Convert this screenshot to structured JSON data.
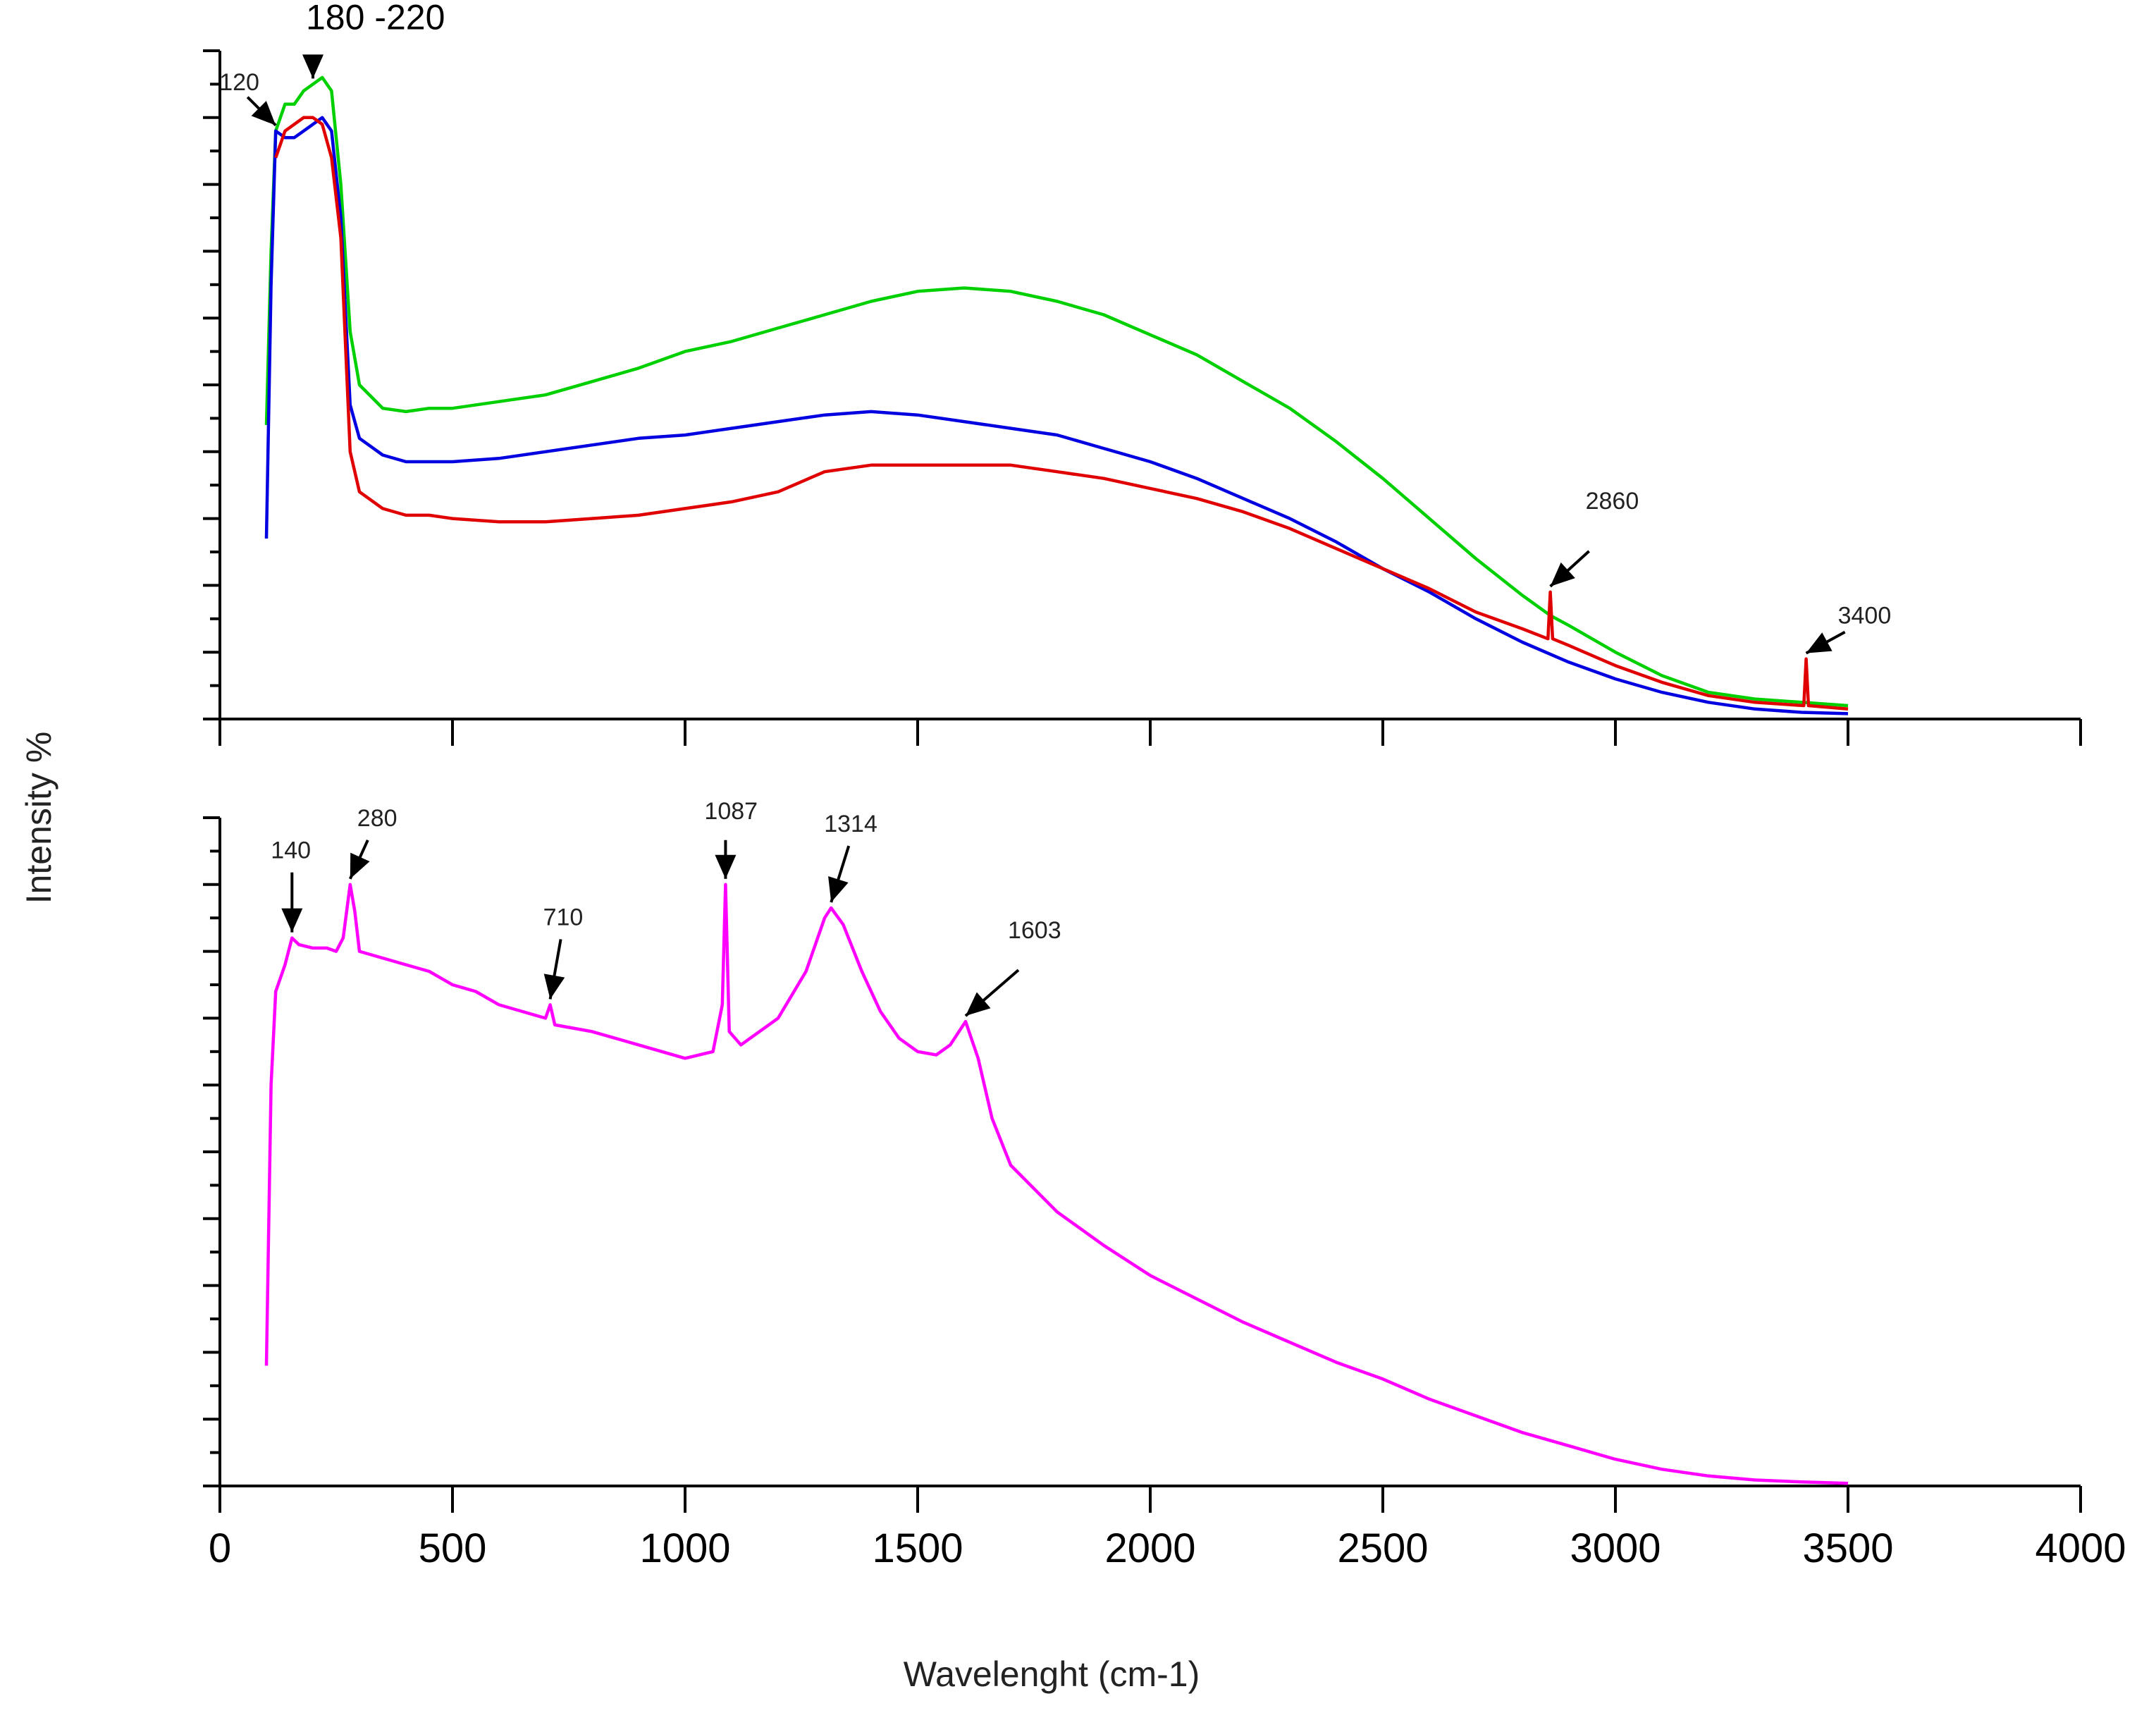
{
  "chart_data": [
    {
      "type": "line",
      "panel": "top",
      "title": "",
      "xlim": [
        0,
        4000
      ],
      "ylim": [
        0,
        100
      ],
      "y_tick_count": 20,
      "x_tick_labels_shown": false,
      "series": [
        {
          "name": "green",
          "color": "#00d000",
          "points": [
            [
              100,
              44
            ],
            [
              110,
              70
            ],
            [
              120,
              88
            ],
            [
              140,
              92
            ],
            [
              160,
              92
            ],
            [
              180,
              94
            ],
            [
              200,
              95
            ],
            [
              220,
              96
            ],
            [
              240,
              94
            ],
            [
              260,
              80
            ],
            [
              280,
              58
            ],
            [
              300,
              50
            ],
            [
              350,
              46.5
            ],
            [
              400,
              46
            ],
            [
              450,
              46.5
            ],
            [
              500,
              46.5
            ],
            [
              600,
              47.5
            ],
            [
              700,
              48.5
            ],
            [
              800,
              50.5
            ],
            [
              900,
              52.5
            ],
            [
              1000,
              55
            ],
            [
              1100,
              56.5
            ],
            [
              1200,
              58.5
            ],
            [
              1300,
              60.5
            ],
            [
              1400,
              62.5
            ],
            [
              1500,
              64
            ],
            [
              1600,
              64.5
            ],
            [
              1700,
              64
            ],
            [
              1800,
              62.5
            ],
            [
              1900,
              60.5
            ],
            [
              2000,
              57.5
            ],
            [
              2100,
              54.5
            ],
            [
              2200,
              50.5
            ],
            [
              2300,
              46.5
            ],
            [
              2400,
              41.5
            ],
            [
              2500,
              36
            ],
            [
              2600,
              30
            ],
            [
              2700,
              24
            ],
            [
              2800,
              18.5
            ],
            [
              2860,
              15.5
            ],
            [
              2900,
              14
            ],
            [
              3000,
              10
            ],
            [
              3100,
              6.5
            ],
            [
              3200,
              4
            ],
            [
              3300,
              3
            ],
            [
              3400,
              2.5
            ],
            [
              3500,
              2
            ]
          ]
        },
        {
          "name": "blue",
          "color": "#0000e0",
          "points": [
            [
              100,
              27
            ],
            [
              110,
              65
            ],
            [
              120,
              88
            ],
            [
              140,
              87
            ],
            [
              160,
              87
            ],
            [
              180,
              88
            ],
            [
              200,
              89
            ],
            [
              220,
              90
            ],
            [
              240,
              88
            ],
            [
              260,
              75
            ],
            [
              280,
              47
            ],
            [
              300,
              42
            ],
            [
              350,
              39.5
            ],
            [
              400,
              38.5
            ],
            [
              450,
              38.5
            ],
            [
              500,
              38.5
            ],
            [
              600,
              39
            ],
            [
              700,
              40
            ],
            [
              800,
              41
            ],
            [
              900,
              42
            ],
            [
              1000,
              42.5
            ],
            [
              1100,
              43.5
            ],
            [
              1200,
              44.5
            ],
            [
              1300,
              45.5
            ],
            [
              1400,
              46
            ],
            [
              1500,
              45.5
            ],
            [
              1600,
              44.5
            ],
            [
              1700,
              43.5
            ],
            [
              1800,
              42.5
            ],
            [
              1900,
              40.5
            ],
            [
              2000,
              38.5
            ],
            [
              2100,
              36
            ],
            [
              2200,
              33
            ],
            [
              2300,
              30
            ],
            [
              2400,
              26.5
            ],
            [
              2500,
              22.5
            ],
            [
              2600,
              19
            ],
            [
              2700,
              15
            ],
            [
              2800,
              11.5
            ],
            [
              2900,
              8.5
            ],
            [
              3000,
              6
            ],
            [
              3100,
              4
            ],
            [
              3200,
              2.5
            ],
            [
              3300,
              1.5
            ],
            [
              3400,
              1
            ],
            [
              3500,
              0.8
            ]
          ]
        },
        {
          "name": "red",
          "color": "#e00000",
          "points": [
            [
              120,
              84
            ],
            [
              140,
              88
            ],
            [
              160,
              89
            ],
            [
              180,
              90
            ],
            [
              200,
              90
            ],
            [
              220,
              89
            ],
            [
              240,
              84
            ],
            [
              260,
              72
            ],
            [
              280,
              40
            ],
            [
              300,
              34
            ],
            [
              350,
              31.5
            ],
            [
              400,
              30.5
            ],
            [
              450,
              30.5
            ],
            [
              500,
              30
            ],
            [
              600,
              29.5
            ],
            [
              700,
              29.5
            ],
            [
              800,
              30
            ],
            [
              900,
              30.5
            ],
            [
              1000,
              31.5
            ],
            [
              1100,
              32.5
            ],
            [
              1200,
              34
            ],
            [
              1300,
              37
            ],
            [
              1400,
              38
            ],
            [
              1500,
              38
            ],
            [
              1600,
              38
            ],
            [
              1700,
              38
            ],
            [
              1800,
              37
            ],
            [
              1900,
              36
            ],
            [
              2000,
              34.5
            ],
            [
              2100,
              33
            ],
            [
              2200,
              31
            ],
            [
              2300,
              28.5
            ],
            [
              2400,
              25.5
            ],
            [
              2500,
              22.5
            ],
            [
              2600,
              19.5
            ],
            [
              2700,
              16
            ],
            [
              2800,
              13.5
            ],
            [
              2855,
              12
            ],
            [
              2860,
              19
            ],
            [
              2865,
              12
            ],
            [
              2900,
              11
            ],
            [
              3000,
              8
            ],
            [
              3100,
              5.5
            ],
            [
              3200,
              3.5
            ],
            [
              3300,
              2.5
            ],
            [
              3405,
              2
            ],
            [
              3410,
              9
            ],
            [
              3415,
              2
            ],
            [
              3500,
              1.5
            ]
          ]
        }
      ],
      "annotations": [
        {
          "text": "120",
          "x": 120,
          "y": 88
        },
        {
          "text": "180 -220",
          "x": 200,
          "y": 95
        },
        {
          "text": "2860",
          "x": 2860,
          "y": 19
        },
        {
          "text": "3400",
          "x": 3410,
          "y": 9
        }
      ]
    },
    {
      "type": "line",
      "panel": "bottom",
      "title": "",
      "xlabel": "Wavelenght (cm-1)",
      "ylabel": "Intensity %",
      "xlim": [
        0,
        4000
      ],
      "ylim": [
        0,
        100
      ],
      "y_tick_count": 20,
      "x_ticks": [
        "0",
        "500",
        "1000",
        "1500",
        "2000",
        "2500",
        "3000",
        "3500",
        "4000"
      ],
      "series": [
        {
          "name": "magenta",
          "color": "#ff00ff",
          "points": [
            [
              100,
              18
            ],
            [
              110,
              60
            ],
            [
              120,
              74
            ],
            [
              140,
              78
            ],
            [
              155,
              82
            ],
            [
              170,
              81
            ],
            [
              200,
              80.5
            ],
            [
              230,
              80.5
            ],
            [
              250,
              80
            ],
            [
              265,
              82
            ],
            [
              280,
              90
            ],
            [
              290,
              86
            ],
            [
              300,
              80
            ],
            [
              350,
              79
            ],
            [
              400,
              78
            ],
            [
              450,
              77
            ],
            [
              500,
              75
            ],
            [
              550,
              74
            ],
            [
              600,
              72
            ],
            [
              650,
              71
            ],
            [
              700,
              70
            ],
            [
              710,
              72
            ],
            [
              720,
              69
            ],
            [
              800,
              68
            ],
            [
              900,
              66
            ],
            [
              1000,
              64
            ],
            [
              1060,
              65
            ],
            [
              1080,
              72
            ],
            [
              1087,
              90
            ],
            [
              1095,
              68
            ],
            [
              1120,
              66
            ],
            [
              1200,
              70
            ],
            [
              1260,
              77
            ],
            [
              1300,
              85
            ],
            [
              1314,
              86.5
            ],
            [
              1340,
              84
            ],
            [
              1380,
              77
            ],
            [
              1420,
              71
            ],
            [
              1460,
              67
            ],
            [
              1500,
              65
            ],
            [
              1540,
              64.5
            ],
            [
              1570,
              66
            ],
            [
              1603,
              69.5
            ],
            [
              1630,
              64
            ],
            [
              1660,
              55
            ],
            [
              1700,
              48
            ],
            [
              1800,
              41
            ],
            [
              1900,
              36
            ],
            [
              2000,
              31.5
            ],
            [
              2100,
              28
            ],
            [
              2200,
              24.5
            ],
            [
              2300,
              21.5
            ],
            [
              2400,
              18.5
            ],
            [
              2500,
              16
            ],
            [
              2600,
              13
            ],
            [
              2700,
              10.5
            ],
            [
              2800,
              8
            ],
            [
              2900,
              6
            ],
            [
              3000,
              4
            ],
            [
              3100,
              2.5
            ],
            [
              3200,
              1.5
            ],
            [
              3300,
              0.9
            ],
            [
              3400,
              0.6
            ],
            [
              3500,
              0.4
            ]
          ]
        }
      ],
      "annotations": [
        {
          "text": "140",
          "x": 155,
          "y": 82
        },
        {
          "text": "280",
          "x": 280,
          "y": 90
        },
        {
          "text": "710",
          "x": 710,
          "y": 72
        },
        {
          "text": "1087",
          "x": 1087,
          "y": 90
        },
        {
          "text": "1314",
          "x": 1314,
          "y": 86.5
        },
        {
          "text": "1603",
          "x": 1603,
          "y": 69.5
        }
      ]
    }
  ]
}
